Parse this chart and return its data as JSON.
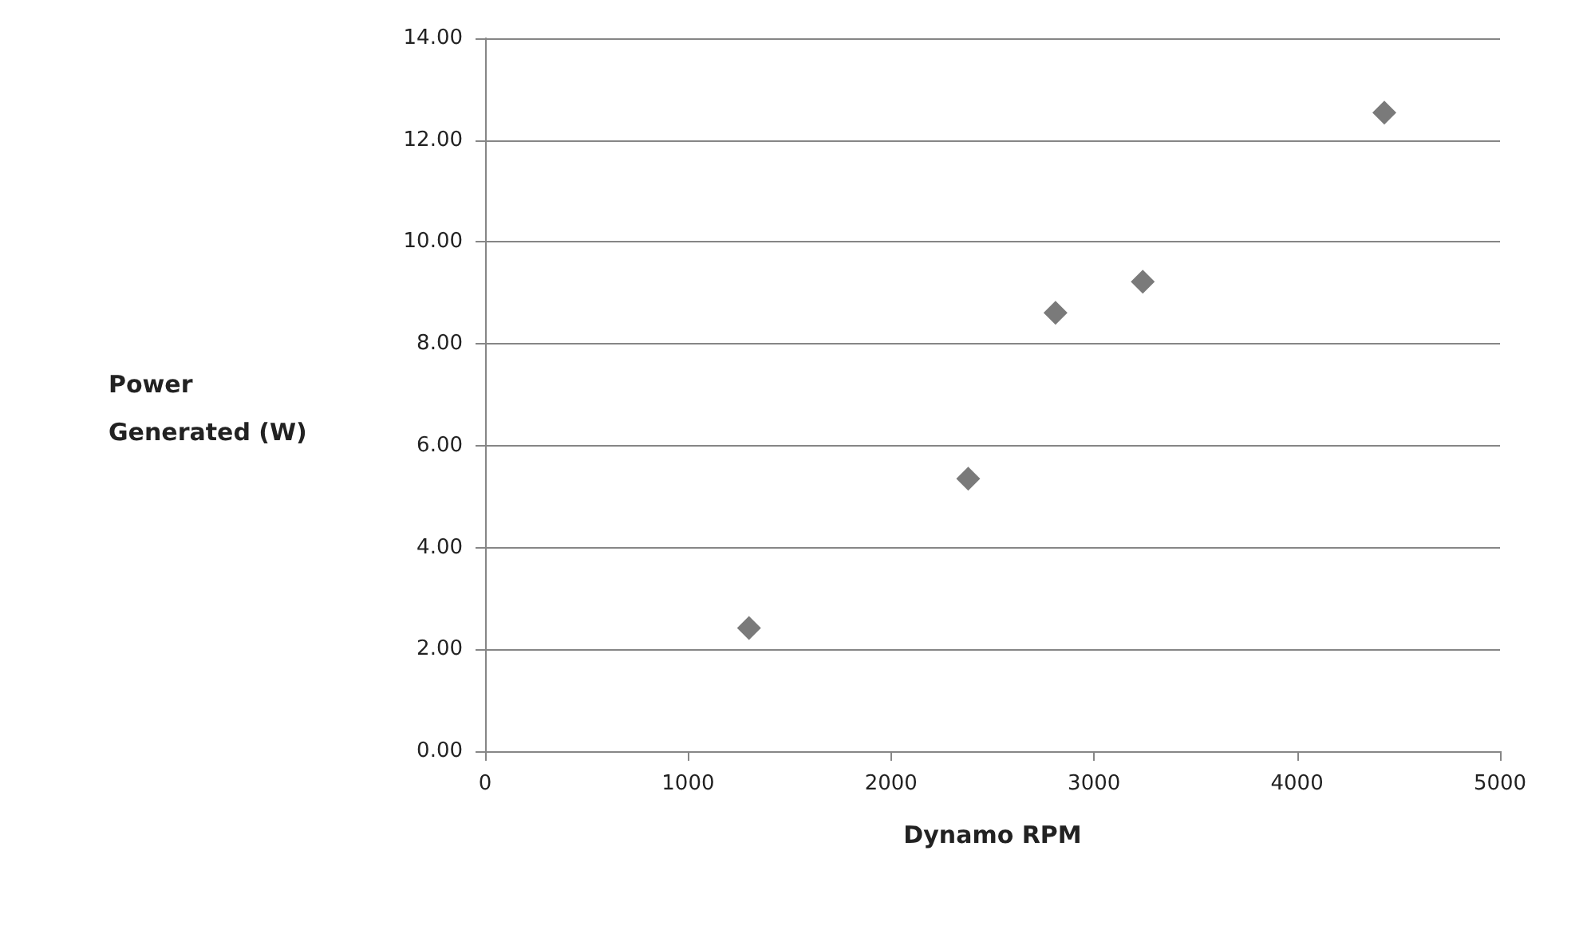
{
  "chart_data": {
    "type": "scatter",
    "xlabel": "Dynamo RPM",
    "ylabel": "Power Generated (W)",
    "x": [
      1300,
      2380,
      2810,
      3240,
      4430
    ],
    "values": [
      2.42,
      5.35,
      8.61,
      9.22,
      12.54
    ],
    "color": "#595959",
    "marker": "diamond",
    "grid": "y",
    "xlim": [
      0,
      5000
    ],
    "xticks": [
      0,
      1000,
      2000,
      3000,
      4000,
      5000
    ],
    "ylim": [
      0,
      14
    ],
    "yticks": [
      {
        "value": 0,
        "label": "0.00"
      },
      {
        "value": 2,
        "label": "2.00"
      },
      {
        "value": 4,
        "label": "4.00"
      },
      {
        "value": 6,
        "label": "6.00"
      },
      {
        "value": 8,
        "label": "8.00"
      },
      {
        "value": 10,
        "label": "10.00"
      },
      {
        "value": 12,
        "label": "12.00"
      },
      {
        "value": 14,
        "label": "14.00"
      }
    ]
  }
}
